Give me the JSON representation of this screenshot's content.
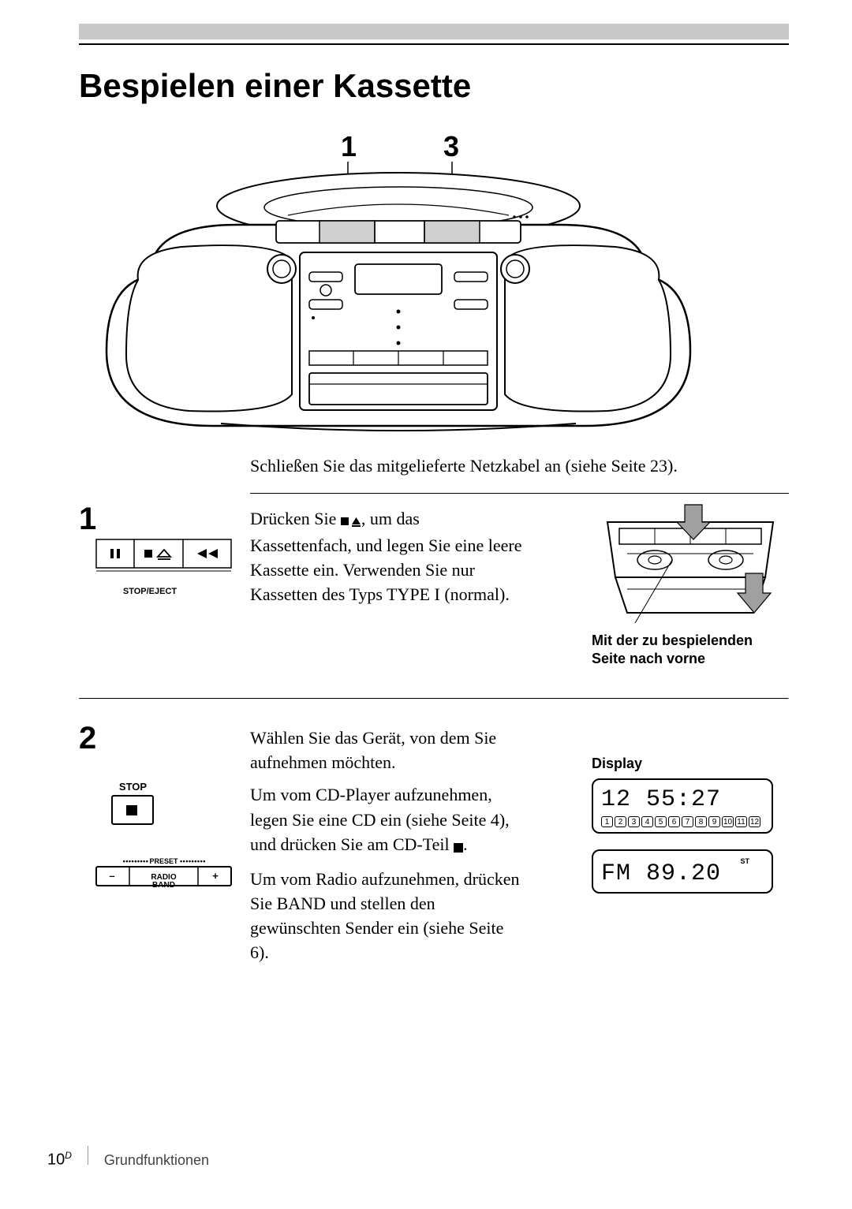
{
  "title": "Bespielen einer Kassette",
  "callout_numbers": {
    "one": "1",
    "three": "3"
  },
  "connect_text": "Schließen Sie das mitgelieferte Netzkabel an (siehe Seite 23).",
  "step1": {
    "number": "1",
    "text_before_icon": "Drücken Sie ",
    "text_after_icon": ", um das Kassettenfach, und legen Sie eine leere Kassette ein. Verwenden Sie nur Kassetten des Typs TYPE I (normal).",
    "stop_eject_label": "STOP/EJECT",
    "caption_line1": "Mit der zu bespielenden",
    "caption_line2": "Seite nach vorne"
  },
  "step2": {
    "number": "2",
    "para1": "Wählen Sie das Gerät, von dem Sie aufnehmen möchten.",
    "para2_before": "Um vom CD-Player aufzunehmen, legen Sie eine CD ein (siehe Seite 4), und drücken Sie am CD-Teil ",
    "para2_after": ".",
    "para3": "Um vom Radio aufzunehmen, drücken Sie BAND und stellen den gewünschten Sender ein (siehe Seite 6).",
    "stop_label": "STOP",
    "preset_label": "PRESET",
    "radio_label": "RADIO",
    "band_label": "BAND",
    "minus": "–",
    "plus": "+",
    "display_label": "Display",
    "display1_text": "12  55:27",
    "display1_numbers": [
      "1",
      "2",
      "3",
      "4",
      "5",
      "6",
      "7",
      "8",
      "9",
      "10",
      "11",
      "12"
    ],
    "display2_st": "ST",
    "display2_text": "FM  89.20"
  },
  "footer": {
    "page_number": "10",
    "page_super": "D",
    "section": "Grundfunktionen"
  },
  "colors": {
    "topbar": "#c8c8c8",
    "line": "#000000",
    "text": "#000000",
    "footer_text": "#444444",
    "button_shade": "#d0d0d0"
  }
}
